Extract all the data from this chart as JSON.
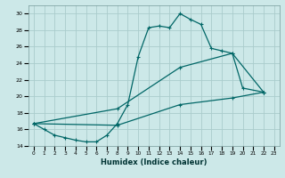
{
  "xlabel": "Humidex (Indice chaleur)",
  "bg_color": "#cce8e8",
  "grid_color": "#aacccc",
  "line_color": "#006666",
  "xlim": [
    -0.5,
    23.5
  ],
  "ylim": [
    14,
    31
  ],
  "xticks": [
    0,
    1,
    2,
    3,
    4,
    5,
    6,
    7,
    8,
    9,
    10,
    11,
    12,
    13,
    14,
    15,
    16,
    17,
    18,
    19,
    20,
    21,
    22,
    23
  ],
  "yticks": [
    14,
    16,
    18,
    20,
    22,
    24,
    26,
    28,
    30
  ],
  "curve1_x": [
    0,
    1,
    2,
    3,
    4,
    5,
    6,
    7,
    8,
    9,
    10,
    11,
    12,
    13,
    14,
    15,
    16,
    17,
    18,
    19,
    20,
    22
  ],
  "curve1_y": [
    16.7,
    16.0,
    15.3,
    15.0,
    14.7,
    14.5,
    14.5,
    15.3,
    16.7,
    19.0,
    24.8,
    28.3,
    28.5,
    28.3,
    30.0,
    29.3,
    28.7,
    25.8,
    25.5,
    25.2,
    21.0,
    20.5
  ],
  "curve2_x": [
    0,
    8,
    14,
    19,
    22
  ],
  "curve2_y": [
    16.7,
    18.5,
    23.5,
    25.2,
    20.5
  ],
  "curve3_x": [
    0,
    8,
    14,
    19,
    22
  ],
  "curve3_y": [
    16.7,
    16.5,
    19.0,
    19.8,
    20.5
  ]
}
